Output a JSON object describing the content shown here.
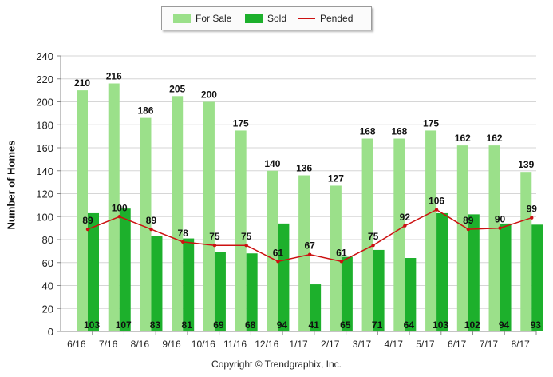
{
  "chart_data": {
    "type": "bar",
    "title": "",
    "xlabel": "",
    "ylabel": "Number of Homes",
    "ylim": [
      0,
      240
    ],
    "yticks": [
      0,
      20,
      40,
      60,
      80,
      100,
      120,
      140,
      160,
      180,
      200,
      220,
      240
    ],
    "grid": true,
    "legend_position": "top-center",
    "categories": [
      "6/16",
      "7/16",
      "8/16",
      "9/16",
      "10/16",
      "11/16",
      "12/16",
      "1/17",
      "2/17",
      "3/17",
      "4/17",
      "5/17",
      "6/17",
      "7/17",
      "8/17"
    ],
    "series": [
      {
        "name": "For Sale",
        "kind": "bar",
        "color": "#9be08a",
        "values": [
          210,
          216,
          186,
          205,
          200,
          175,
          140,
          136,
          127,
          168,
          168,
          175,
          162,
          162,
          139
        ]
      },
      {
        "name": "Sold",
        "kind": "bar",
        "color": "#1db02c",
        "values": [
          103,
          107,
          83,
          81,
          69,
          68,
          94,
          41,
          65,
          71,
          64,
          103,
          102,
          94,
          93
        ]
      },
      {
        "name": "Pended",
        "kind": "line",
        "color": "#cc1111",
        "values": [
          89,
          100,
          89,
          78,
          75,
          75,
          61,
          67,
          61,
          75,
          92,
          106,
          89,
          90,
          99
        ]
      }
    ]
  },
  "legend": {
    "for_sale": "For Sale",
    "sold": "Sold",
    "pended": "Pended"
  },
  "copyright": "Copyright © Trendgraphix, Inc."
}
